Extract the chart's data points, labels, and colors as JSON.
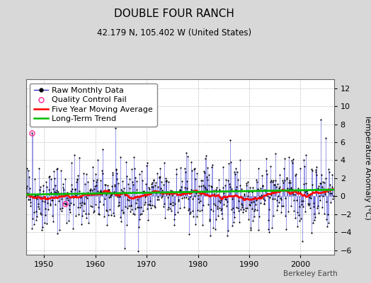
{
  "title": "DOUBLE FOUR RANCH",
  "subtitle": "42.179 N, 105.402 W (United States)",
  "ylabel": "Temperature Anomaly (°C)",
  "watermark": "Berkeley Earth",
  "start_year": 1946.5,
  "end_year": 2006.5,
  "ylim": [
    -6.5,
    13.0
  ],
  "yticks": [
    -6,
    -4,
    -2,
    0,
    2,
    4,
    6,
    8,
    10,
    12
  ],
  "xticks": [
    1950,
    1960,
    1970,
    1980,
    1990,
    2000
  ],
  "bg_color": "#d8d8d8",
  "plot_bg_color": "#ffffff",
  "raw_line_color": "#3333cc",
  "raw_marker_color": "#000000",
  "qc_fail_color": "#ff44aa",
  "moving_avg_color": "#ff0000",
  "trend_color": "#00bb00",
  "grid_color": "#bbbbbb",
  "title_fontsize": 11,
  "subtitle_fontsize": 8.5,
  "legend_fontsize": 8,
  "tick_fontsize": 8,
  "qc_fail_indices": [
    14,
    92
  ],
  "seed": 42,
  "n_years": 60,
  "noise_std": 1.9,
  "trend_slope": 0.006
}
